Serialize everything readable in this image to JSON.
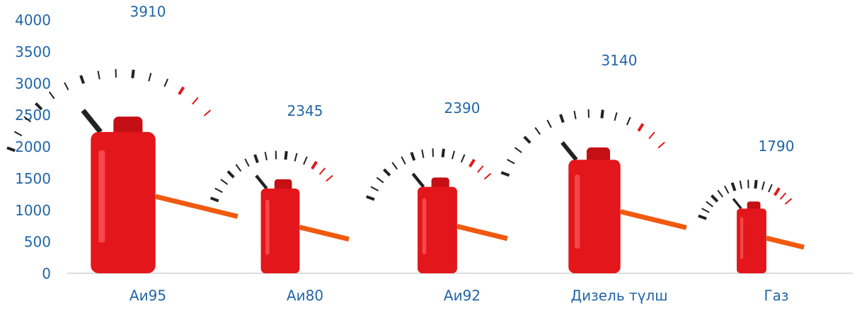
{
  "chart_data": {
    "type": "bar",
    "categories": [
      "Аи95",
      "Аи80",
      "Аи92",
      "Дизель түлш",
      "Газ"
    ],
    "values": [
      3910,
      2345,
      2390,
      3140,
      1790
    ],
    "color": "#e3161b",
    "ylim": [
      0,
      4000
    ],
    "yticks": [
      0,
      500,
      1000,
      1500,
      2000,
      2500,
      3000,
      3500,
      4000
    ]
  }
}
